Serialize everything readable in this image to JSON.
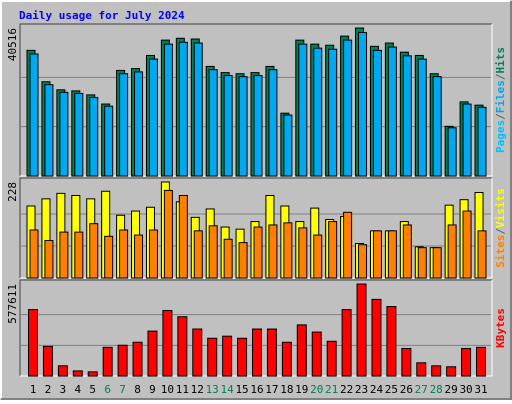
{
  "chart_data": [
    {
      "type": "bar",
      "title": "Daily usage for July 2024",
      "ylim": [
        0,
        40516
      ],
      "yticks": [
        40516
      ],
      "gridlines": [
        13505,
        27011
      ],
      "extra_legend": {
        "name": "Pages",
        "color": "#00c0ff"
      },
      "legend_separator": "/",
      "series": [
        {
          "name": "Hits",
          "color": "#00805c",
          "values": [
            34400,
            25800,
            23600,
            23300,
            22200,
            19700,
            28900,
            29400,
            33000,
            37200,
            37700,
            37500,
            30000,
            28300,
            28000,
            28300,
            30000,
            17200,
            37200,
            36100,
            35800,
            38300,
            40516,
            35500,
            36400,
            33900,
            33000,
            28000,
            13600,
            20300,
            19400
          ]
        },
        {
          "name": "Files",
          "color": "#00a8f0",
          "values": [
            33400,
            25000,
            22900,
            22600,
            21500,
            19100,
            28000,
            28500,
            32000,
            36100,
            36600,
            36400,
            29100,
            27500,
            27200,
            27500,
            29100,
            16700,
            36100,
            35000,
            34700,
            37200,
            39300,
            34400,
            35300,
            32900,
            32000,
            27200,
            13200,
            19700,
            18800
          ]
        }
      ]
    },
    {
      "type": "bar",
      "ylim": [
        0,
        228
      ],
      "yticks": [
        228
      ],
      "gridlines": [
        76,
        152
      ],
      "legend_separator": "/",
      "series": [
        {
          "name": "Visits",
          "color": "#ffff00",
          "values": [
            171,
            188,
            201,
            196,
            188,
            206,
            149,
            159,
            168,
            228,
            181,
            144,
            164,
            121,
            116,
            134,
            196,
            171,
            134,
            166,
            139,
            146,
            82,
            112,
            112,
            134,
            74,
            72,
            173,
            186,
            203
          ]
        },
        {
          "name": "Sites",
          "color": "#ff8000",
          "values": [
            114,
            89,
            109,
            109,
            129,
            99,
            114,
            102,
            114,
            208,
            196,
            112,
            124,
            92,
            84,
            121,
            126,
            131,
            119,
            102,
            134,
            156,
            79,
            112,
            112,
            126,
            72,
            72,
            126,
            159,
            112
          ]
        }
      ]
    },
    {
      "type": "bar",
      "ylim": [
        0,
        577611
      ],
      "yticks": [
        577611
      ],
      "gridlines": [
        192537,
        385074
      ],
      "categories": [
        "1",
        "2",
        "3",
        "4",
        "5",
        "6",
        "7",
        "8",
        "9",
        "10",
        "11",
        "12",
        "13",
        "14",
        "15",
        "16",
        "17",
        "18",
        "19",
        "20",
        "21",
        "22",
        "23",
        "24",
        "25",
        "26",
        "27",
        "28",
        "29",
        "30",
        "31"
      ],
      "category_colors": [
        "#000000",
        "#000000",
        "#000000",
        "#000000",
        "#000000",
        "#00805c",
        "#00805c",
        "#000000",
        "#000000",
        "#000000",
        "#000000",
        "#000000",
        "#00805c",
        "#00805c",
        "#000000",
        "#000000",
        "#000000",
        "#000000",
        "#000000",
        "#00805c",
        "#00805c",
        "#000000",
        "#000000",
        "#000000",
        "#000000",
        "#000000",
        "#00805c",
        "#00805c",
        "#000000",
        "#000000",
        "#000000"
      ],
      "series": [
        {
          "name": "KBytes",
          "color": "#ff0000",
          "values": [
            417000,
            186000,
            64000,
            32000,
            26000,
            180000,
            193000,
            212000,
            282000,
            411000,
            372000,
            295000,
            237000,
            250000,
            237000,
            295000,
            295000,
            212000,
            321000,
            276000,
            218000,
            417000,
            577611,
            481000,
            436000,
            173000,
            83000,
            64000,
            58000,
            173000,
            180000
          ]
        }
      ]
    }
  ]
}
